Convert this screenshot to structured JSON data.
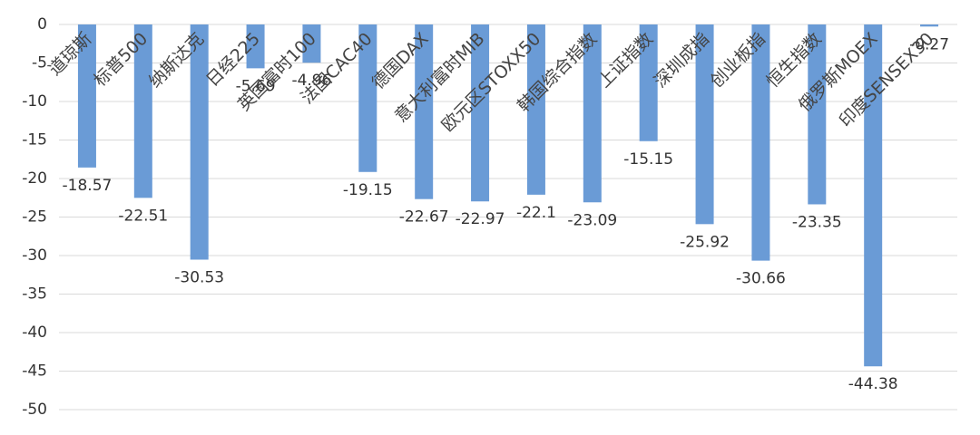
{
  "chart_data": {
    "type": "bar",
    "categories": [
      "道琼斯",
      "标普500",
      "纳斯达克",
      "日经225",
      "英国富时100",
      "法国CAC40",
      "德国DAX",
      "意大利富时MIB",
      "欧元区STOXX50",
      "韩国综合指数",
      "上证指数",
      "深圳成指",
      "创业板指",
      "恒生指数",
      "俄罗斯MOEX",
      "印度SENSEX30"
    ],
    "values": [
      -18.57,
      -22.51,
      -30.53,
      -5.69,
      -4.96,
      -19.15,
      -22.67,
      -22.97,
      -22.1,
      -23.09,
      -15.15,
      -25.92,
      -30.66,
      -23.35,
      -44.38,
      -0.27
    ],
    "color": "#6a9bd6",
    "ylim": [
      -50,
      0
    ],
    "yticks": [
      0,
      -5,
      -10,
      -15,
      -20,
      -25,
      -30,
      -35,
      -40,
      -45,
      -50
    ],
    "grid": true
  }
}
